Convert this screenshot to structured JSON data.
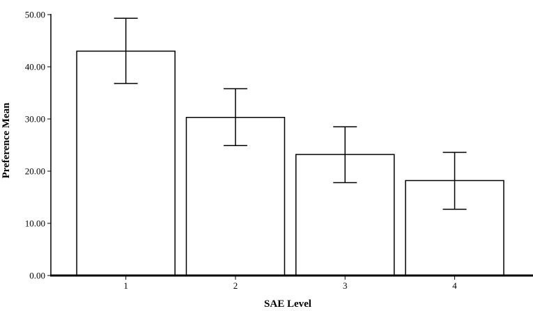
{
  "chart_data": {
    "type": "bar",
    "title": "",
    "xlabel": "SAE Level",
    "ylabel": "Preference Mean",
    "categories": [
      "1",
      "2",
      "3",
      "4"
    ],
    "values": [
      43.0,
      30.3,
      23.2,
      18.2
    ],
    "error_bars": [
      {
        "low": 36.8,
        "high": 49.3
      },
      {
        "low": 24.9,
        "high": 35.8
      },
      {
        "low": 17.8,
        "high": 28.5
      },
      {
        "low": 12.7,
        "high": 23.6
      }
    ],
    "ylim": [
      0,
      53
    ],
    "yticks": [
      "0.00",
      "10.00",
      "20.00",
      "30.00",
      "40.00",
      "50.00"
    ],
    "grid": false,
    "legend": "none",
    "colors": {
      "bar_fill": "#ffffff",
      "bar_stroke": "#000000",
      "axis": "#000000"
    }
  }
}
